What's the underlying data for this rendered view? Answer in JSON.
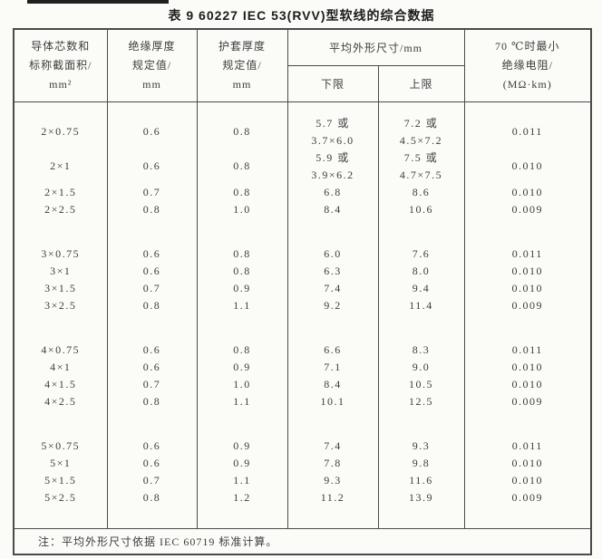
{
  "title": "表 9  60227 IEC 53(RVV)型软线的综合数据",
  "table": {
    "header": {
      "col1_lines": [
        "导体芯数和",
        "标称截面积/",
        "mm²"
      ],
      "col2_lines": [
        "绝缘厚度",
        "规定值/",
        "mm"
      ],
      "col3_lines": [
        "护套厚度",
        "规定值/",
        "mm"
      ],
      "dimensions_group": "平均外形尺寸/mm",
      "lower_limit": "下限",
      "upper_limit": "上限",
      "col6_lines": [
        "70 ℃时最小",
        "绝缘电阻/",
        "(MΩ·km)"
      ]
    },
    "groups": [
      [
        [
          "2×0.75",
          "0.6",
          "0.8",
          [
            "5.7 或",
            "3.7×6.0"
          ],
          [
            "7.2 或",
            "4.5×7.2"
          ],
          "0.011"
        ],
        [
          "2×1",
          "0.6",
          "0.8",
          [
            "5.9 或",
            "3.9×6.2"
          ],
          [
            "7.5 或",
            "4.7×7.5"
          ],
          "0.010"
        ],
        [
          "2×1.5",
          "0.7",
          "0.8",
          "6.8",
          "8.6",
          "0.010"
        ],
        [
          "2×2.5",
          "0.8",
          "1.0",
          "8.4",
          "10.6",
          "0.009"
        ]
      ],
      [
        [
          "3×0.75",
          "0.6",
          "0.8",
          "6.0",
          "7.6",
          "0.011"
        ],
        [
          "3×1",
          "0.6",
          "0.8",
          "6.3",
          "8.0",
          "0.010"
        ],
        [
          "3×1.5",
          "0.7",
          "0.9",
          "7.4",
          "9.4",
          "0.010"
        ],
        [
          "3×2.5",
          "0.8",
          "1.1",
          "9.2",
          "11.4",
          "0.009"
        ]
      ],
      [
        [
          "4×0.75",
          "0.6",
          "0.8",
          "6.6",
          "8.3",
          "0.011"
        ],
        [
          "4×1",
          "0.6",
          "0.9",
          "7.1",
          "9.0",
          "0.010"
        ],
        [
          "4×1.5",
          "0.7",
          "1.0",
          "8.4",
          "10.5",
          "0.010"
        ],
        [
          "4×2.5",
          "0.8",
          "1.1",
          "10.1",
          "12.5",
          "0.009"
        ]
      ],
      [
        [
          "5×0.75",
          "0.6",
          "0.9",
          "7.4",
          "9.3",
          "0.011"
        ],
        [
          "5×1",
          "0.6",
          "0.9",
          "7.8",
          "9.8",
          "0.010"
        ],
        [
          "5×1.5",
          "0.7",
          "1.1",
          "9.3",
          "11.6",
          "0.010"
        ],
        [
          "5×2.5",
          "0.8",
          "1.2",
          "11.2",
          "13.9",
          "0.009"
        ]
      ]
    ],
    "note": "注：平均外形尺寸依据 IEC 60719 标准计算。"
  },
  "layout_spacing": {
    "top_spacer": 14,
    "group_spacer": 30,
    "bottom_filler": 24
  },
  "colors": {
    "background": "#fbfbf8",
    "text": "#3d3d3d",
    "border": "#4a4a4a",
    "title_text": "#1c1c1c",
    "scan_artifact": "#1f1f1f"
  }
}
